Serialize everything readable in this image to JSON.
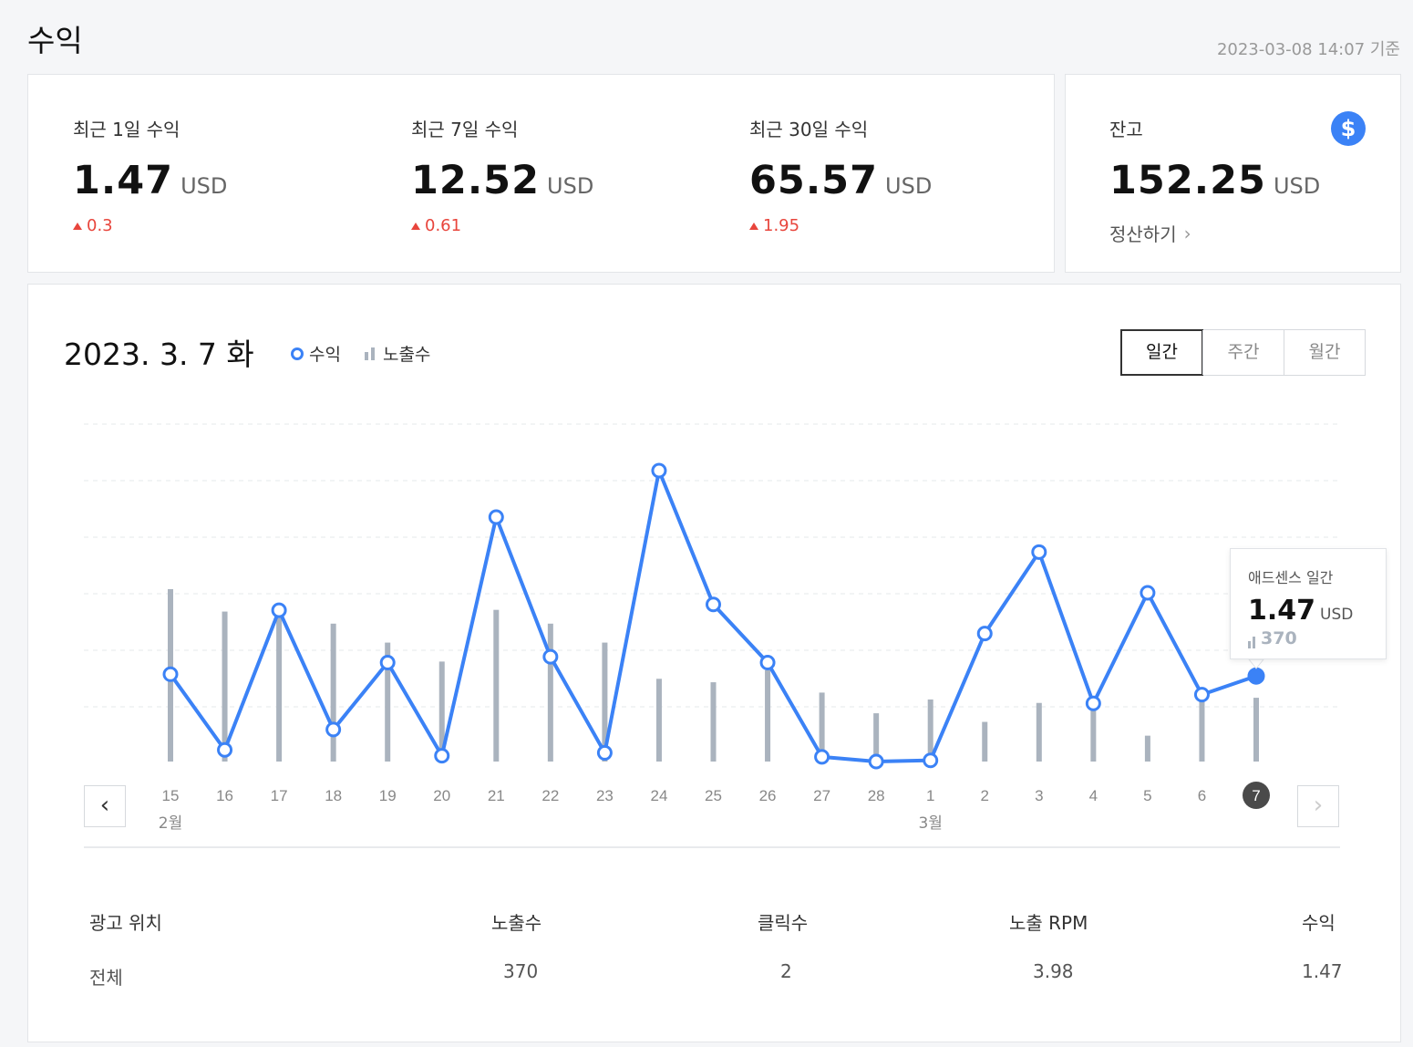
{
  "header": {
    "title": "수익",
    "timestamp": "2023-03-08 14:07 기준"
  },
  "stats": [
    {
      "label": "최근 1일 수익",
      "value": "1.47",
      "unit": "USD",
      "delta": "0.3"
    },
    {
      "label": "최근 7일 수익",
      "value": "12.52",
      "unit": "USD",
      "delta": "0.61"
    },
    {
      "label": "최근 30일 수익",
      "value": "65.57",
      "unit": "USD",
      "delta": "1.95"
    }
  ],
  "balance": {
    "label": "잔고",
    "value": "152.25",
    "unit": "USD",
    "link": "정산하기",
    "icon": "dollar-icon"
  },
  "chart": {
    "date": "2023. 3. 7 화",
    "legend_revenue": "수익",
    "legend_impressions": "노출수",
    "tabs": [
      "일간",
      "주간",
      "월간"
    ],
    "active_tab": "일간",
    "colors": {
      "line": "#3b82f6",
      "bar": "#aab3be"
    },
    "tooltip": {
      "title": "애드센스 일간",
      "value": "1.47",
      "unit": "USD",
      "count": "370"
    }
  },
  "chart_data": {
    "type": "line",
    "categories": [
      "15",
      "16",
      "17",
      "18",
      "19",
      "20",
      "21",
      "22",
      "23",
      "24",
      "25",
      "26",
      "27",
      "28",
      "1",
      "2",
      "3",
      "4",
      "5",
      "6",
      "7"
    ],
    "month_labels": [
      {
        "index": 0,
        "label": "2월"
      },
      {
        "index": 14,
        "label": "3월"
      }
    ],
    "selected_index": 20,
    "series": [
      {
        "name": "수익",
        "type": "line",
        "values": [
          1.5,
          0.2,
          2.6,
          0.55,
          1.7,
          0.1,
          4.2,
          1.8,
          0.15,
          5.0,
          2.7,
          1.7,
          0.08,
          0.0,
          0.02,
          2.2,
          3.6,
          1.0,
          2.9,
          1.15,
          1.47
        ]
      },
      {
        "name": "노출수",
        "type": "bar",
        "values": [
          1000,
          870,
          870,
          800,
          690,
          580,
          880,
          800,
          690,
          480,
          460,
          530,
          400,
          280,
          360,
          230,
          340,
          310,
          150,
          360,
          370
        ]
      }
    ],
    "grid": true
  },
  "table": {
    "headers": [
      "광고 위치",
      "노출수",
      "클릭수",
      "노출 RPM",
      "수익"
    ],
    "rows": [
      [
        "전체",
        "370",
        "2",
        "3.98",
        "1.47"
      ]
    ]
  }
}
